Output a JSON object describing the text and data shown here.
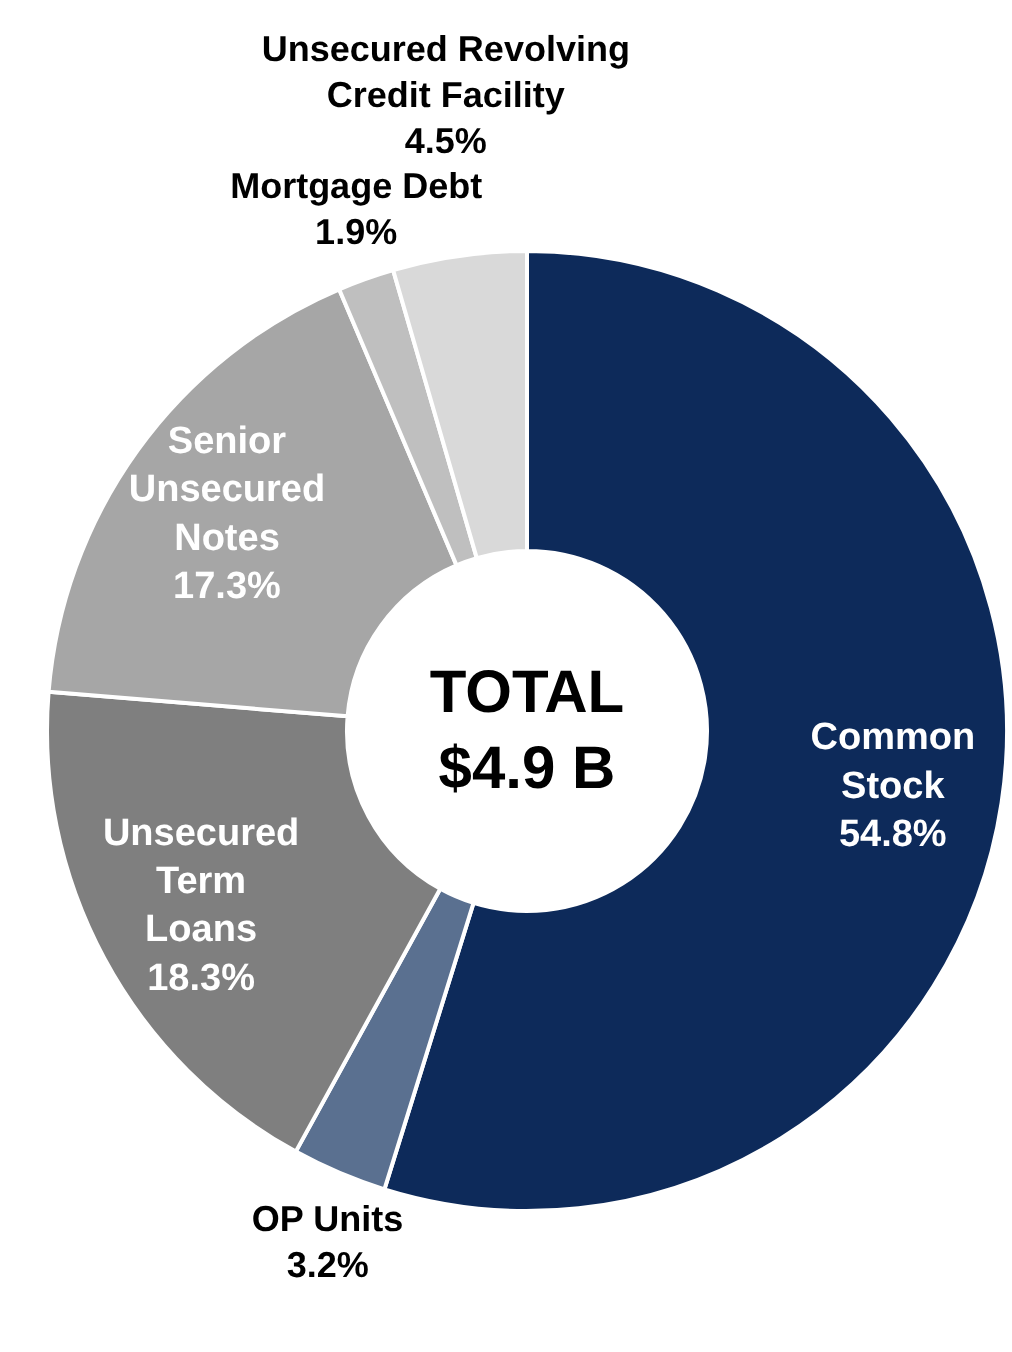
{
  "chart_data": {
    "type": "donut",
    "categories": [
      "Common\nStock",
      "OP Units",
      "Unsecured\nTerm\nLoans",
      "Senior\nUnsecured\nNotes",
      "Mortgage Debt",
      "Unsecured Revolving\nCredit Facility"
    ],
    "values": [
      54.8,
      3.2,
      18.3,
      17.3,
      1.9,
      4.5
    ],
    "colors": [
      "#0d2a5a",
      "#5a7090",
      "#7f7f7f",
      "#a6a6a6",
      "#bfbfbf",
      "#d9d9d9"
    ],
    "value_labels": [
      "54.8%",
      "3.2%",
      "18.3%",
      "17.3%",
      "1.9%",
      "4.5%"
    ],
    "annotations": [
      "TOTAL\n$4.9 B"
    ]
  }
}
